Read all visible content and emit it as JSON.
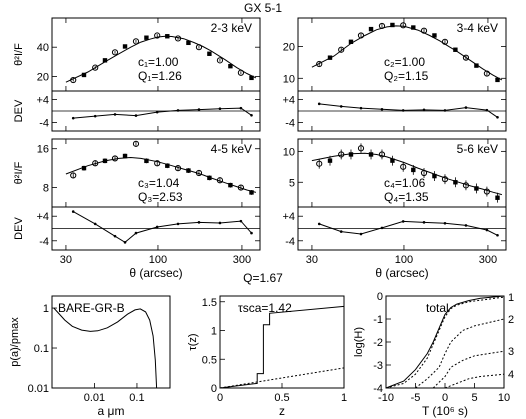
{
  "figure": {
    "title": "GX 5-1",
    "q_label": "Q=1.67"
  },
  "chart_data": [
    {
      "type": "scatter",
      "panel": "2-3 keV",
      "band_label": "2-3 keV",
      "c_label": "c₁=1.00",
      "q_label": "Q₁=1.26",
      "ylabel": "θ²I/F",
      "xscale": "log",
      "xlim": [
        25,
        380
      ],
      "ylim": [
        10,
        60
      ],
      "yticks": [
        20,
        40
      ],
      "points": {
        "x": [
          33,
          38,
          44,
          50,
          57,
          65,
          75,
          86,
          99,
          113,
          130,
          149,
          171,
          196,
          225,
          258,
          296,
          340
        ],
        "y": [
          17.5,
          21,
          26,
          31,
          36.5,
          40.5,
          44,
          46.5,
          48,
          47.5,
          46,
          43,
          40,
          35.5,
          31,
          27,
          22.5,
          19
        ],
        "err": [
          1,
          1,
          1,
          1,
          1,
          1,
          1,
          1,
          1,
          1,
          1,
          1,
          1,
          1,
          1,
          1,
          1,
          1
        ]
      },
      "model": {
        "x": [
          30,
          40,
          50,
          60,
          70,
          80,
          90,
          100,
          110,
          120,
          140,
          160,
          180,
          200,
          240,
          280,
          320,
          360
        ],
        "y": [
          16,
          23,
          30,
          35.5,
          40,
          43.5,
          45.5,
          47,
          47.5,
          47.3,
          45.8,
          43.2,
          40.5,
          37.5,
          31.5,
          26,
          22,
          19
        ]
      },
      "dev": {
        "ylabel": "DEV",
        "yticks": [
          "+4",
          "-4"
        ],
        "ylim": [
          -7,
          7
        ],
        "x": [
          33,
          44,
          57,
          75,
          99,
          130,
          171,
          225,
          296,
          340
        ],
        "y": [
          -2.5,
          -1.8,
          -1.2,
          -1.6,
          -0.4,
          0.2,
          0.5,
          0.8,
          1.0,
          -1.5
        ]
      }
    },
    {
      "type": "scatter",
      "panel": "3-4 keV",
      "band_label": "3-4 keV",
      "c_label": "c₂=1.00",
      "q_label": "Q₂=1.15",
      "ylabel": "",
      "xscale": "log",
      "xlim": [
        25,
        380
      ],
      "ylim": [
        6,
        29
      ],
      "yticks": [
        10,
        20
      ],
      "points": {
        "x": [
          33,
          38,
          44,
          50,
          57,
          65,
          75,
          86,
          99,
          113,
          130,
          149,
          171,
          196,
          225,
          258,
          296,
          340
        ],
        "y": [
          14.5,
          16.5,
          19,
          21.5,
          23.5,
          25.5,
          26.5,
          26.8,
          26.7,
          26,
          25,
          23.5,
          21.5,
          19,
          16.5,
          14,
          11.5,
          9.5
        ],
        "err": [
          0.6,
          0.6,
          0.6,
          0.6,
          0.6,
          0.6,
          0.6,
          0.6,
          0.6,
          0.6,
          0.6,
          0.6,
          0.6,
          0.6,
          0.6,
          0.6,
          0.6,
          0.6
        ]
      },
      "model": {
        "x": [
          30,
          40,
          50,
          60,
          70,
          80,
          90,
          100,
          120,
          140,
          160,
          180,
          200,
          240,
          280,
          320,
          360
        ],
        "y": [
          13.5,
          17,
          21,
          23.5,
          25.3,
          26.2,
          26.5,
          26.4,
          25.2,
          23.5,
          21.8,
          20,
          18.5,
          15.5,
          13,
          11,
          9.5
        ]
      },
      "dev": {
        "ylabel": "",
        "yticks": [
          "+4",
          "-4"
        ],
        "ylim": [
          -7,
          7
        ],
        "x": [
          33,
          44,
          57,
          75,
          99,
          130,
          171,
          225,
          296,
          340
        ],
        "y": [
          2.5,
          1.6,
          1.0,
          0.6,
          0.2,
          0.4,
          0.2,
          1.2,
          0.3,
          -2.2
        ]
      }
    },
    {
      "type": "scatter",
      "panel": "4-5 keV",
      "band_label": "4-5 keV",
      "c_label": "c₃=1.04",
      "q_label": "Q₃=2.53",
      "ylabel": "θ²I/F",
      "xscale": "log",
      "xlim": [
        25,
        380
      ],
      "ylim": [
        4,
        18
      ],
      "yticks": [
        8,
        16
      ],
      "points": {
        "x": [
          33,
          38,
          44,
          50,
          57,
          65,
          75,
          86,
          99,
          113,
          130,
          149,
          171,
          196,
          225,
          258,
          296,
          340
        ],
        "y": [
          10.5,
          12,
          13,
          13.5,
          14,
          14.5,
          17,
          13.5,
          13,
          12.5,
          12,
          11.5,
          11,
          10,
          9.5,
          8.5,
          8,
          7
        ],
        "err": [
          0.5,
          0.5,
          0.5,
          0.5,
          0.5,
          0.5,
          0.5,
          0.5,
          0.5,
          0.5,
          0.5,
          0.5,
          0.5,
          0.5,
          0.5,
          0.5,
          0.5,
          0.5
        ]
      },
      "model": {
        "x": [
          30,
          40,
          50,
          60,
          70,
          80,
          100,
          120,
          140,
          160,
          180,
          200,
          240,
          280,
          320,
          360
        ],
        "y": [
          10.8,
          12.5,
          13.5,
          14,
          14.2,
          14,
          13.3,
          12.5,
          11.8,
          11.2,
          10.6,
          10,
          9,
          8.2,
          7.5,
          7
        ]
      },
      "dev": {
        "ylabel": "DEV",
        "yticks": [
          "+4",
          "-4"
        ],
        "ylim": [
          -7,
          7
        ],
        "x": [
          33,
          44,
          57,
          65,
          75,
          99,
          130,
          171,
          225,
          296,
          340
        ],
        "y": [
          5.5,
          1.5,
          -2.5,
          -4.5,
          -1.5,
          0.5,
          1.5,
          2.0,
          1.8,
          2.4,
          -1.5
        ]
      }
    },
    {
      "type": "scatter",
      "panel": "5-6 keV",
      "band_label": "5-6 keV",
      "c_label": "c₄=1.06",
      "q_label": "Q₄=1.35",
      "ylabel": "",
      "xscale": "log",
      "xlim": [
        25,
        380
      ],
      "ylim": [
        1,
        12
      ],
      "yticks": [
        5,
        10
      ],
      "points": {
        "x": [
          33,
          38,
          44,
          50,
          57,
          65,
          75,
          86,
          99,
          113,
          130,
          149,
          171,
          196,
          225,
          258,
          296,
          340
        ],
        "y": [
          8,
          8.5,
          9.5,
          9.5,
          10.5,
          9.5,
          9.5,
          8.5,
          7.5,
          7,
          6.5,
          6,
          5.5,
          5,
          4.5,
          4,
          3.5,
          2.5
        ],
        "err": [
          0.8,
          0.8,
          0.8,
          0.8,
          0.8,
          0.8,
          0.8,
          0.8,
          0.8,
          0.8,
          0.8,
          0.8,
          0.8,
          0.8,
          0.8,
          0.8,
          0.8,
          0.8
        ]
      },
      "model": {
        "x": [
          30,
          40,
          50,
          60,
          70,
          80,
          100,
          120,
          140,
          160,
          180,
          200,
          240,
          280,
          320,
          360
        ],
        "y": [
          8.5,
          9.2,
          9.6,
          9.7,
          9.5,
          9.1,
          8.2,
          7.3,
          6.6,
          6,
          5.5,
          5.1,
          4.4,
          3.9,
          3.4,
          3
        ]
      },
      "dev": {
        "ylabel": "",
        "yticks": [
          "+4",
          "-4"
        ],
        "ylim": [
          -7,
          7
        ],
        "x": [
          33,
          44,
          57,
          75,
          99,
          130,
          171,
          225,
          296,
          340
        ],
        "y": [
          1.5,
          -1.0,
          -1.8,
          0.2,
          2.3,
          2.0,
          1.7,
          1.0,
          -0.5,
          -2.2
        ]
      }
    },
    {
      "type": "line",
      "panel": "size distribution",
      "label": "BARE-GR-B",
      "ylabel": "p(a)/pmax",
      "xlabel": "a μm",
      "xscale": "log",
      "yscale": "log",
      "xlim": [
        0.001,
        0.6
      ],
      "ylim": [
        0.01,
        2
      ],
      "xticks": [
        "0.01",
        "0.1"
      ],
      "yticks": [
        "0.01",
        "0.1",
        "1"
      ],
      "x": [
        0.0011,
        0.002,
        0.003,
        0.005,
        0.008,
        0.012,
        0.02,
        0.035,
        0.06,
        0.09,
        0.12,
        0.16,
        0.2,
        0.24,
        0.27,
        0.29
      ],
      "y": [
        1.0,
        0.5,
        0.35,
        0.28,
        0.26,
        0.27,
        0.32,
        0.45,
        0.7,
        0.9,
        0.95,
        0.8,
        0.5,
        0.2,
        0.05,
        0.01
      ]
    },
    {
      "type": "line",
      "panel": "scattering optical depth",
      "label": "τsca=1.42",
      "ylabel": "τ(z)",
      "xlabel": "z",
      "xlim": [
        0,
        1
      ],
      "ylim": [
        0,
        1.6
      ],
      "xticks": [
        "0",
        "0.5",
        "1"
      ],
      "yticks": [
        "0",
        "0.5",
        "1",
        "1.5"
      ],
      "series": [
        {
          "style": "solid",
          "x": [
            0,
            0.3,
            0.3,
            0.35,
            0.35,
            0.4,
            0.4,
            1.0
          ],
          "y": [
            0,
            0.08,
            0.25,
            0.25,
            1.1,
            1.1,
            1.3,
            1.42
          ]
        },
        {
          "style": "dotted",
          "x": [
            0,
            1.0
          ],
          "y": [
            0,
            0.35
          ]
        }
      ]
    },
    {
      "type": "line",
      "panel": "light curves",
      "label": "total",
      "ylabel": "log(H)",
      "xlabel": "T (10⁶ s)",
      "xlim": [
        -10,
        10
      ],
      "ylim": [
        -4,
        0
      ],
      "xticks": [
        "-10",
        "-5",
        "0",
        "5",
        "10"
      ],
      "yticks": [
        "-4",
        "-3",
        "-2",
        "-1",
        "0"
      ],
      "side_labels": [
        "1",
        "2",
        "3",
        "4"
      ],
      "series": [
        {
          "name": "total",
          "style": "solid",
          "x": [
            -10,
            -7,
            -5,
            -3,
            -2,
            -1,
            0,
            1,
            2,
            4,
            6,
            10
          ],
          "y": [
            -4,
            -3.7,
            -3.2,
            -2.5,
            -2.0,
            -1.4,
            -0.8,
            -0.5,
            -0.35,
            -0.2,
            -0.1,
            0
          ]
        },
        {
          "name": "1",
          "style": "dotted",
          "x": [
            -10,
            -7,
            -5,
            -3,
            -1,
            0,
            1,
            2,
            4,
            10
          ],
          "y": [
            -4,
            -3.8,
            -3.4,
            -2.7,
            -1.5,
            -0.9,
            -0.55,
            -0.4,
            -0.25,
            -0.05
          ]
        },
        {
          "name": "2",
          "style": "dotted",
          "x": [
            -5,
            -3,
            -1,
            0,
            1,
            3,
            5,
            10
          ],
          "y": [
            -4,
            -3.6,
            -3.1,
            -2.5,
            -2.0,
            -1.5,
            -1.3,
            -1.0
          ]
        },
        {
          "name": "3",
          "style": "dotted",
          "x": [
            -2,
            0,
            1,
            3,
            5,
            10
          ],
          "y": [
            -4,
            -3.5,
            -3.1,
            -2.8,
            -2.6,
            -2.4
          ]
        },
        {
          "name": "4",
          "style": "dotted",
          "x": [
            0,
            2,
            4,
            6,
            10
          ],
          "y": [
            -4,
            -3.8,
            -3.6,
            -3.5,
            -3.4
          ]
        }
      ]
    }
  ],
  "axis_labels": {
    "theta": "θ (arcsec)",
    "xticks_theta": [
      "30",
      "100",
      "300"
    ]
  }
}
